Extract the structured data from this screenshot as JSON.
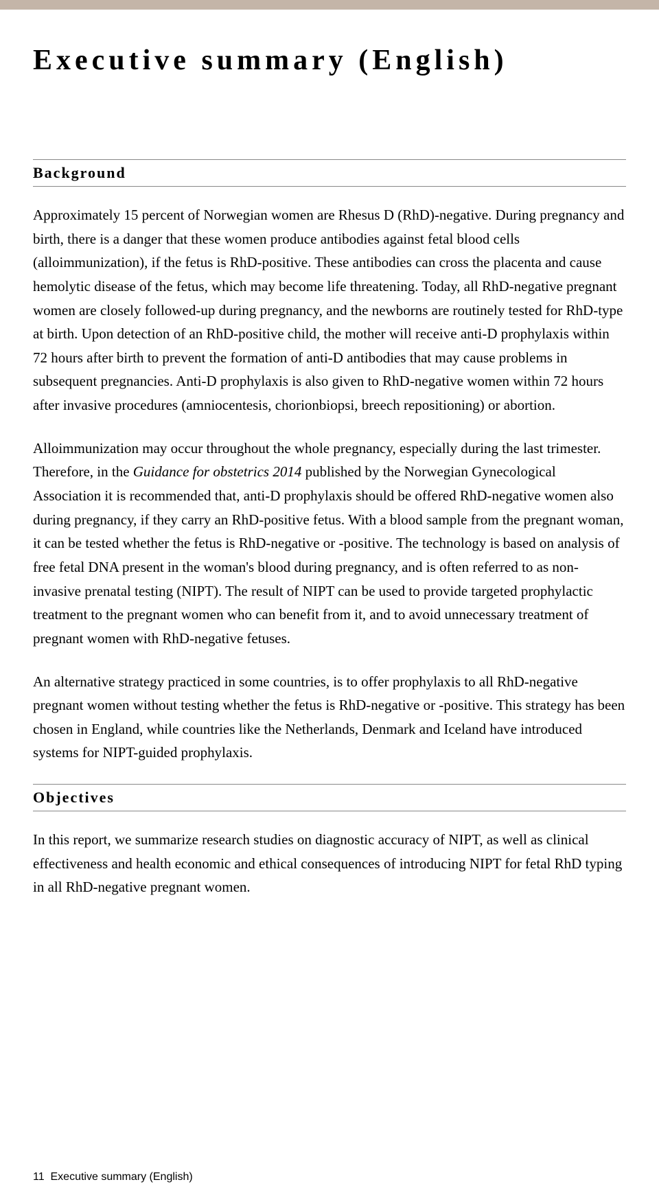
{
  "colors": {
    "top_bar": "#c4b5a8",
    "text": "#000000",
    "background": "#ffffff",
    "rule": "#888888"
  },
  "typography": {
    "body_font": "Georgia",
    "title_fontsize": 42,
    "title_letterspacing": 6,
    "heading_fontsize": 22,
    "heading_letterspacing": 2,
    "body_fontsize": 21,
    "body_lineheight": 1.65,
    "footer_fontsize": 16
  },
  "title": "Executive summary (English)",
  "sections": {
    "background": {
      "heading": "Background",
      "p1_a": "Approximately 15 percent of Norwegian women are Rhesus D (RhD)-negative. During pregnancy and birth, there is a danger that these women produce antibodies against fetal blood cells (alloimmunization), if the fetus is RhD-positive. These antibodies can cross the placenta and cause hemolytic disease of the fetus, which may become life threatening. Today, all RhD-negative pregnant women are closely followed-up during pregnancy, and the newborns are routinely tested for RhD-type at birth. Upon detection of an RhD-positive child, the mother will receive anti-D prophylaxis within 72 hours after birth to prevent the formation of anti-D antibodies that may cause problems in subsequent pregnancies. Anti-D prophylaxis is also given to RhD-negative women within 72 hours after invasive procedures (amniocentesis, chorionbiopsi, breech repositioning) or abortion.",
      "p2_a": "Alloimmunization may occur throughout the whole pregnancy, especially during the last trimester. Therefore, in the ",
      "p2_italic": "Guidance for obstetrics 2014",
      "p2_b": " published by the Norwegian Gynecological Association it is recommended that, anti-D prophylaxis should be offered RhD-negative women also during pregnancy, if they carry an RhD-positive fetus. With a blood sample from the pregnant woman, it can be tested whether the fetus is RhD-negative or -positive. The technology is based on analysis of free fetal DNA present in the woman's blood during pregnancy, and is often referred to as non-invasive prenatal testing (NIPT). The result of NIPT can be used to provide targeted prophylactic treatment to the pregnant women who can benefit from it, and to avoid unnecessary treatment of pregnant women with RhD-negative fetuses.",
      "p3": "An alternative strategy practiced in some countries, is to offer prophylaxis to all RhD-negative pregnant women without testing whether the fetus is RhD-negative or -positive. This strategy has been chosen in England, while countries like the Netherlands, Denmark and Iceland have introduced systems for NIPT-guided prophylaxis."
    },
    "objectives": {
      "heading": "Objectives",
      "p1": "In this report, we summarize research studies on diagnostic accuracy of NIPT, as well as clinical effectiveness and health economic and ethical consequences of introducing NIPT for fetal RhD typing in all RhD-negative pregnant women."
    }
  },
  "footer": {
    "page": "11",
    "label": "Executive summary (English)"
  }
}
